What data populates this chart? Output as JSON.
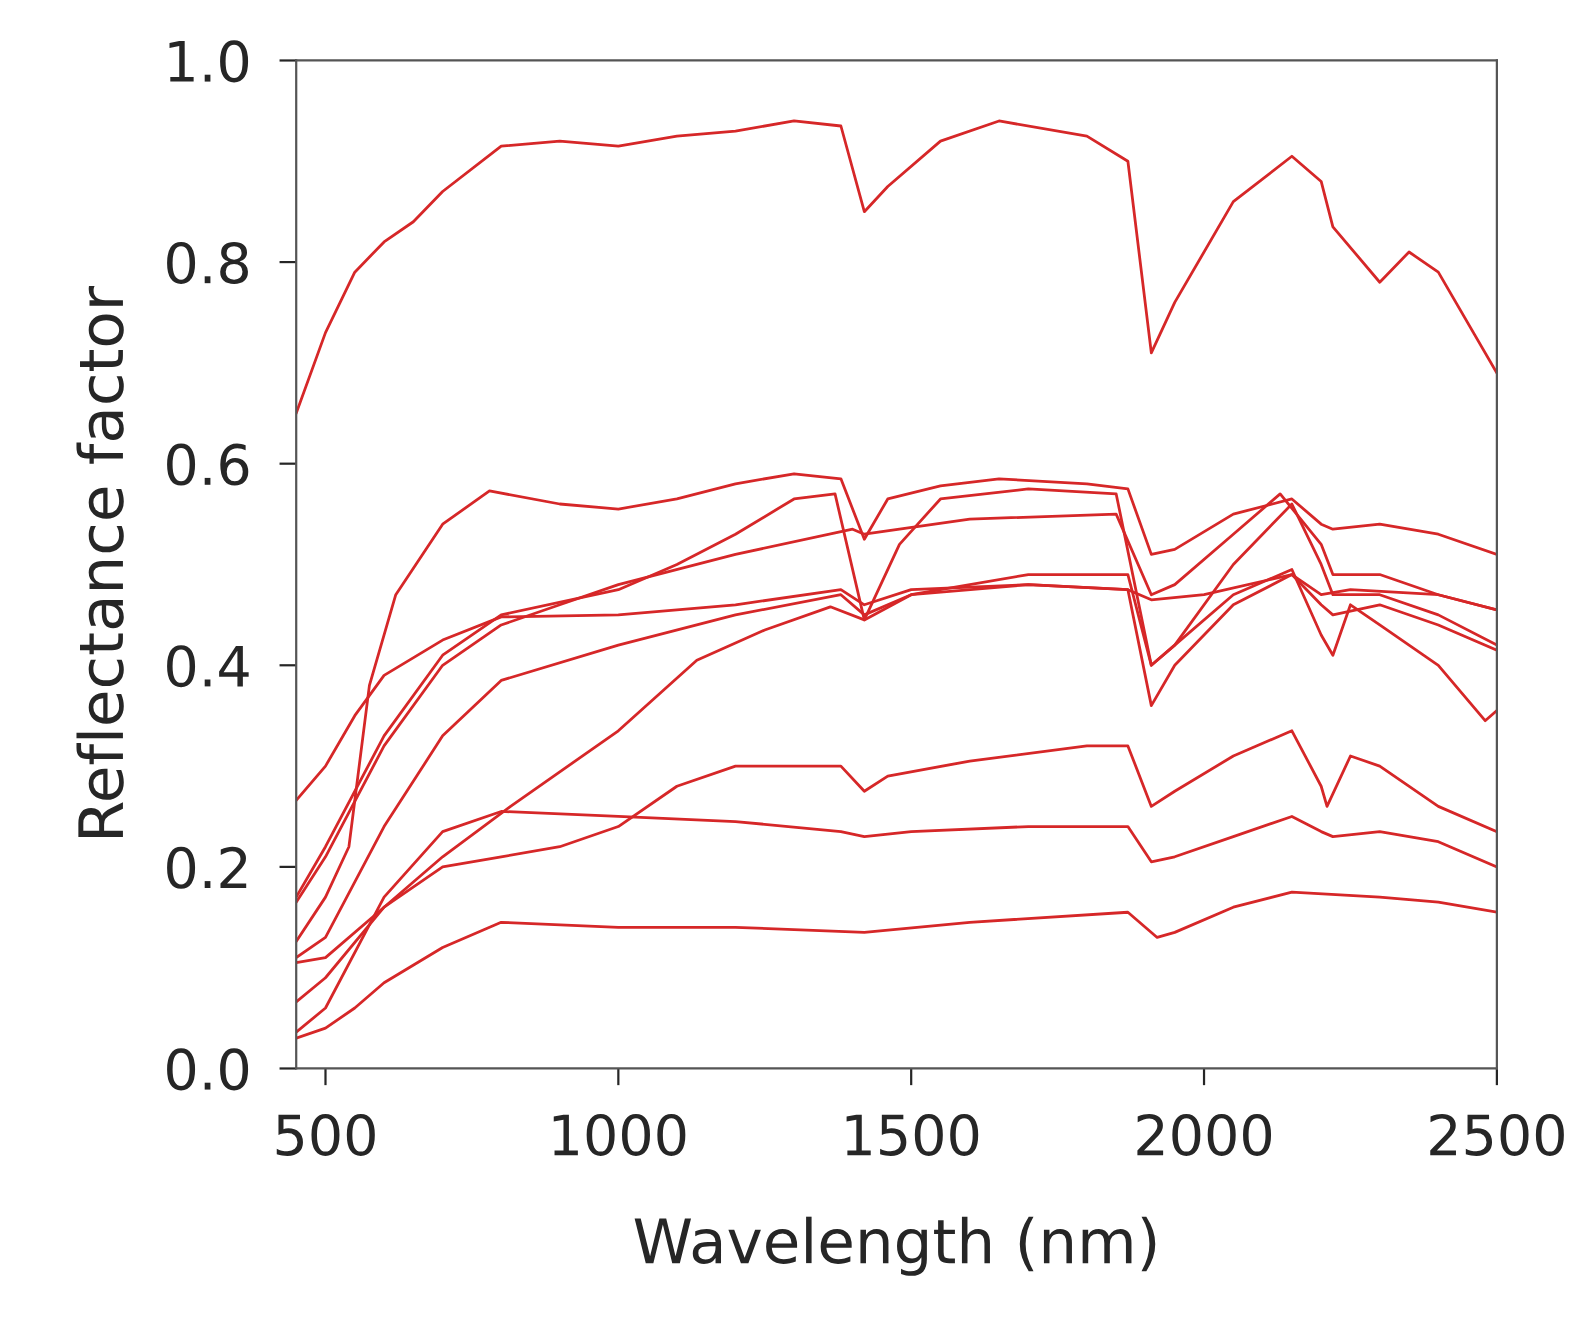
{
  "chart_data": {
    "type": "line",
    "xlabel": "Wavelength (nm)",
    "ylabel": "Reflectance factor",
    "xlim": [
      450,
      2500
    ],
    "xticks": [
      500,
      1000,
      1500,
      2000,
      2500
    ],
    "ylim": [
      0,
      1
    ],
    "yticks": [
      {
        "value": 0,
        "label": "0.0"
      },
      {
        "value": 0.2,
        "label": "0.2"
      },
      {
        "value": 0.4,
        "label": "0.4"
      },
      {
        "value": 0.6,
        "label": "0.6"
      },
      {
        "value": 0.8,
        "label": "0.8"
      },
      {
        "value": 1,
        "label": "1.0"
      }
    ],
    "grid": false,
    "marker": "none",
    "line_style": "solid",
    "series": [
      {
        "color": "#d62728",
        "x": [
          450,
          500,
          550,
          600,
          650,
          700,
          800,
          900,
          1000,
          1100,
          1200,
          1300,
          1380,
          1420,
          1460,
          1550,
          1650,
          1800,
          1870,
          1910,
          1950,
          2050,
          2150,
          2200,
          2220,
          2300,
          2350,
          2400,
          2500
        ],
        "values": [
          0.65,
          0.73,
          0.79,
          0.82,
          0.84,
          0.87,
          0.915,
          0.92,
          0.915,
          0.925,
          0.93,
          0.94,
          0.935,
          0.85,
          0.875,
          0.92,
          0.94,
          0.925,
          0.9,
          0.71,
          0.76,
          0.86,
          0.905,
          0.88,
          0.835,
          0.78,
          0.81,
          0.79,
          0.69
        ]
      },
      {
        "color": "#d62728",
        "x": [
          450,
          500,
          540,
          575,
          620,
          700,
          780,
          900,
          1000,
          1100,
          1200,
          1300,
          1380,
          1420,
          1460,
          1550,
          1650,
          1800,
          1870,
          1910,
          1950,
          2050,
          2150,
          2200,
          2220,
          2300,
          2400,
          2500
        ],
        "values": [
          0.126,
          0.17,
          0.22,
          0.38,
          0.47,
          0.54,
          0.573,
          0.56,
          0.555,
          0.565,
          0.58,
          0.59,
          0.585,
          0.525,
          0.565,
          0.578,
          0.585,
          0.58,
          0.575,
          0.51,
          0.515,
          0.55,
          0.565,
          0.54,
          0.535,
          0.54,
          0.53,
          0.51
        ]
      },
      {
        "color": "#d62728",
        "x": [
          450,
          500,
          550,
          600,
          700,
          800,
          1000,
          1200,
          1380,
          1420,
          1500,
          1700,
          1870,
          1910,
          2000,
          2150,
          2200,
          2250,
          2400,
          2500
        ],
        "values": [
          0.266,
          0.3,
          0.35,
          0.39,
          0.425,
          0.448,
          0.45,
          0.46,
          0.475,
          0.46,
          0.475,
          0.48,
          0.475,
          0.465,
          0.47,
          0.49,
          0.47,
          0.475,
          0.47,
          0.455
        ]
      },
      {
        "color": "#d62728",
        "x": [
          450,
          500,
          600,
          700,
          800,
          900,
          1000,
          1200,
          1400,
          1420,
          1600,
          1850,
          1910,
          1950,
          2050,
          2130,
          2200,
          2220,
          2300,
          2400,
          2500
        ],
        "values": [
          0.165,
          0.21,
          0.32,
          0.4,
          0.44,
          0.46,
          0.48,
          0.51,
          0.535,
          0.53,
          0.545,
          0.55,
          0.47,
          0.48,
          0.53,
          0.57,
          0.52,
          0.49,
          0.49,
          0.47,
          0.455
        ]
      },
      {
        "color": "#d62728",
        "x": [
          450,
          500,
          600,
          700,
          800,
          1000,
          1100,
          1200,
          1300,
          1370,
          1420,
          1480,
          1550,
          1700,
          1850,
          1910,
          1950,
          2050,
          2150,
          2200,
          2220,
          2300,
          2400,
          2500
        ],
        "values": [
          0.17,
          0.22,
          0.33,
          0.41,
          0.45,
          0.475,
          0.5,
          0.53,
          0.565,
          0.57,
          0.445,
          0.52,
          0.565,
          0.575,
          0.57,
          0.4,
          0.42,
          0.5,
          0.56,
          0.5,
          0.47,
          0.47,
          0.45,
          0.42
        ]
      },
      {
        "color": "#d62728",
        "x": [
          450,
          500,
          600,
          700,
          800,
          1000,
          1200,
          1380,
          1420,
          1500,
          1700,
          1870,
          1910,
          1950,
          2050,
          2150,
          2200,
          2220,
          2250,
          2300,
          2400,
          2480,
          2500
        ],
        "values": [
          0.11,
          0.13,
          0.24,
          0.33,
          0.385,
          0.42,
          0.45,
          0.47,
          0.45,
          0.47,
          0.49,
          0.49,
          0.4,
          0.42,
          0.47,
          0.495,
          0.43,
          0.41,
          0.46,
          0.44,
          0.4,
          0.345,
          0.355
        ]
      },
      {
        "color": "#d62728",
        "x": [
          450,
          500,
          600,
          700,
          816,
          1000,
          1134,
          1250,
          1362,
          1420,
          1500,
          1700,
          1870,
          1910,
          1950,
          2050,
          2150,
          2200,
          2220,
          2300,
          2400,
          2500
        ],
        "values": [
          0.105,
          0.11,
          0.16,
          0.21,
          0.26,
          0.335,
          0.405,
          0.435,
          0.458,
          0.445,
          0.47,
          0.48,
          0.475,
          0.36,
          0.4,
          0.46,
          0.49,
          0.46,
          0.45,
          0.46,
          0.44,
          0.415
        ]
      },
      {
        "color": "#d62728",
        "x": [
          450,
          500,
          600,
          700,
          800,
          900,
          1000,
          1100,
          1200,
          1380,
          1420,
          1460,
          1600,
          1800,
          1870,
          1910,
          1950,
          2050,
          2150,
          2200,
          2210,
          2250,
          2300,
          2400,
          2500
        ],
        "values": [
          0.066,
          0.09,
          0.16,
          0.2,
          0.21,
          0.22,
          0.24,
          0.28,
          0.3,
          0.3,
          0.275,
          0.29,
          0.305,
          0.32,
          0.32,
          0.26,
          0.275,
          0.31,
          0.335,
          0.28,
          0.26,
          0.31,
          0.3,
          0.26,
          0.235
        ]
      },
      {
        "color": "#d62728",
        "x": [
          450,
          500,
          600,
          700,
          800,
          1000,
          1200,
          1380,
          1420,
          1500,
          1700,
          1870,
          1910,
          1950,
          2050,
          2150,
          2200,
          2220,
          2300,
          2400,
          2500
        ],
        "values": [
          0.036,
          0.06,
          0.17,
          0.235,
          0.255,
          0.25,
          0.245,
          0.235,
          0.23,
          0.235,
          0.24,
          0.24,
          0.205,
          0.21,
          0.23,
          0.25,
          0.235,
          0.23,
          0.235,
          0.225,
          0.2
        ]
      },
      {
        "color": "#d62728",
        "x": [
          450,
          500,
          550,
          600,
          700,
          800,
          1000,
          1200,
          1420,
          1600,
          1870,
          1920,
          1950,
          2050,
          2150,
          2300,
          2400,
          2500
        ],
        "values": [
          0.03,
          0.04,
          0.06,
          0.085,
          0.12,
          0.145,
          0.14,
          0.14,
          0.135,
          0.145,
          0.155,
          0.13,
          0.135,
          0.16,
          0.175,
          0.17,
          0.165,
          0.155
        ]
      }
    ]
  }
}
